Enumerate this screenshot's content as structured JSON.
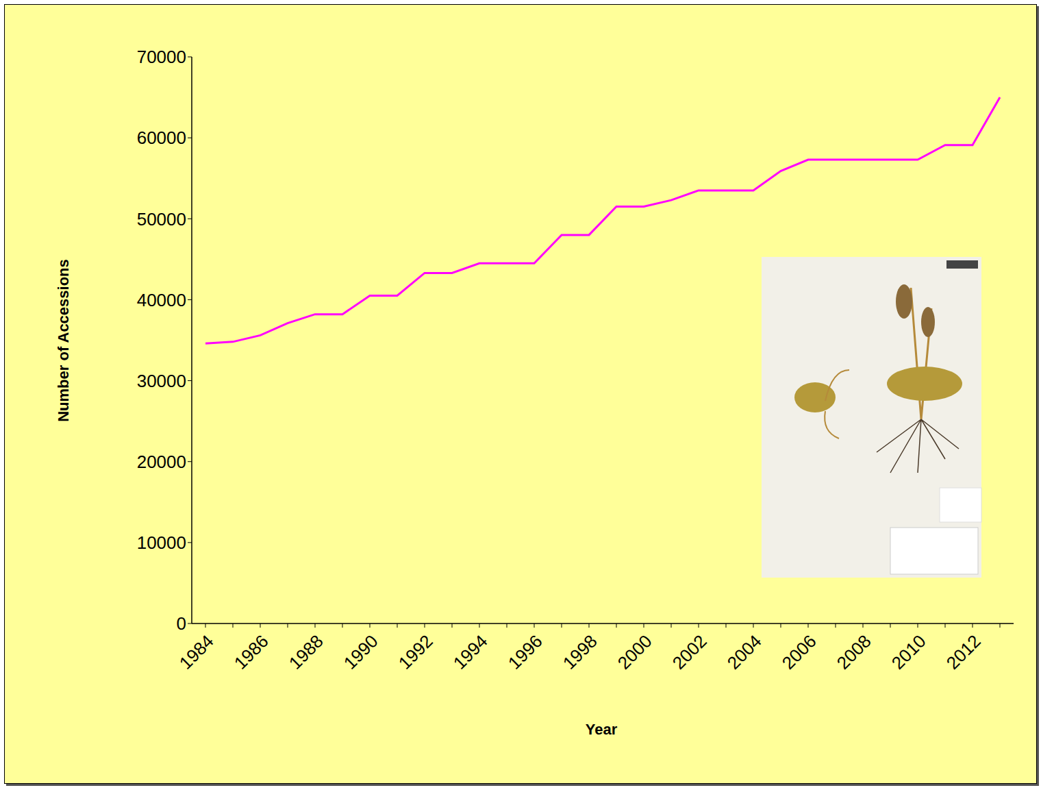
{
  "chart_data": {
    "type": "line",
    "x_label": "Year",
    "y_label": "Number of Accessions",
    "categories": [
      "1984",
      null,
      "1986",
      null,
      "1988",
      null,
      "1990",
      null,
      "1992",
      null,
      "1994",
      null,
      "1996",
      null,
      "1998",
      null,
      "2000",
      null,
      "2002",
      null,
      "2004",
      null,
      "2006",
      null,
      "2008",
      null,
      "2010",
      null,
      "2012",
      null
    ],
    "values": [
      34600,
      34800,
      35600,
      37100,
      38200,
      38200,
      40500,
      40500,
      43300,
      43300,
      44500,
      44500,
      44500,
      48000,
      48000,
      51500,
      51500,
      52300,
      53500,
      53500,
      53500,
      55900,
      57300,
      57300,
      57300,
      57300,
      57300,
      59100,
      59100,
      65000
    ],
    "color": "#ff00ff",
    "ylim": [
      0,
      70000
    ],
    "yticks": [
      0,
      10000,
      20000,
      30000,
      40000,
      50000,
      60000,
      70000
    ],
    "grid": false,
    "marker": "none"
  }
}
